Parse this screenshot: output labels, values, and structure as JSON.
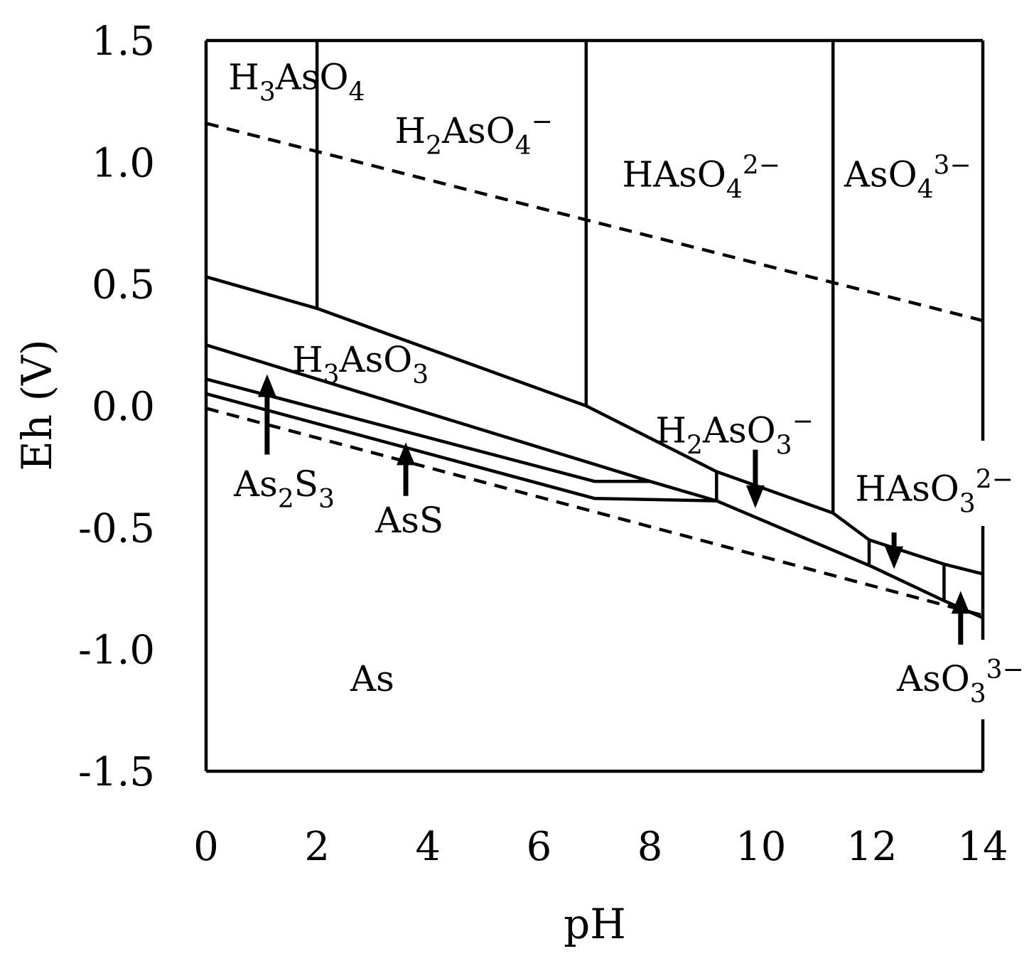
{
  "chart_data": {
    "type": "line",
    "xlabel": "pH",
    "ylabel": "Eh (V)",
    "xlim": [
      0,
      14
    ],
    "ylim": [
      -1.5,
      1.5
    ],
    "xticks": [
      "0",
      "2",
      "4",
      "6",
      "8",
      "10",
      "12",
      "14"
    ],
    "yticks": [
      "1.5",
      "1.0",
      "0.5",
      "0.0",
      "-0.5",
      "-1.0",
      "-1.5"
    ],
    "grid": false,
    "water_stability": [
      {
        "points": [
          [
            0,
            1.16
          ],
          [
            14,
            0.35
          ]
        ]
      },
      {
        "points": [
          [
            0,
            -0.01
          ],
          [
            14,
            -0.86
          ]
        ]
      }
    ],
    "boundaries": [
      {
        "points": [
          [
            0,
            0.53
          ],
          [
            2.0,
            0.4
          ],
          [
            6.85,
            0.0
          ],
          [
            9.2,
            -0.27
          ],
          [
            11.3,
            -0.44
          ],
          [
            11.95,
            -0.55
          ],
          [
            13.3,
            -0.65
          ],
          [
            14.0,
            -0.69
          ]
        ]
      },
      {
        "points": [
          [
            0,
            0.25
          ],
          [
            8.0,
            -0.31
          ],
          [
            9.2,
            -0.39
          ],
          [
            12.0,
            -0.66
          ],
          [
            13.3,
            -0.8
          ],
          [
            14.0,
            -0.87
          ]
        ]
      },
      {
        "points": [
          [
            0,
            0.11
          ],
          [
            7.0,
            -0.31
          ],
          [
            8.0,
            -0.31
          ]
        ]
      },
      {
        "points": [
          [
            0,
            0.05
          ],
          [
            7.0,
            -0.38
          ],
          [
            9.2,
            -0.39
          ]
        ]
      },
      {
        "points": [
          [
            2.0,
            1.5
          ],
          [
            2.0,
            0.4
          ]
        ]
      },
      {
        "points": [
          [
            6.85,
            1.5
          ],
          [
            6.85,
            0.0
          ]
        ]
      },
      {
        "points": [
          [
            11.3,
            1.5
          ],
          [
            11.3,
            -0.44
          ]
        ]
      },
      {
        "points": [
          [
            9.2,
            -0.27
          ],
          [
            9.2,
            -0.39
          ]
        ],
        "color": "#1e3a1e"
      },
      {
        "points": [
          [
            11.95,
            -0.55
          ],
          [
            11.95,
            -0.65
          ]
        ]
      },
      {
        "points": [
          [
            13.3,
            -0.65
          ],
          [
            13.3,
            -0.8
          ]
        ]
      }
    ],
    "arrows": [
      {
        "label": "As2S3",
        "from": [
          1.1,
          -0.2
        ],
        "to": [
          1.1,
          0.13
        ]
      },
      {
        "label": "AsS",
        "from": [
          3.6,
          -0.37
        ],
        "to": [
          3.6,
          -0.15
        ]
      },
      {
        "label": "H2AsO3-",
        "from": [
          9.9,
          -0.18
        ],
        "to": [
          9.9,
          -0.42
        ]
      },
      {
        "label": "HAsO3 2-",
        "from": [
          12.4,
          -0.52
        ],
        "to": [
          12.4,
          -0.67
        ]
      },
      {
        "label": "AsO3 3-",
        "from": [
          13.6,
          -0.98
        ],
        "to": [
          13.6,
          -0.76
        ]
      }
    ],
    "annotations": [
      {
        "id": "h3aso4",
        "base": "H",
        "sub1": "3",
        "mid": "AsO",
        "sub2": "4",
        "sup": "",
        "x": 0.4,
        "y": 1.3
      },
      {
        "id": "h2aso4",
        "base": "H",
        "sub1": "2",
        "mid": "AsO",
        "sub2": "4",
        "sup": "−",
        "x": 3.4,
        "y": 1.08
      },
      {
        "id": "haso4",
        "base": "HAsO",
        "sub1": "4",
        "mid": "",
        "sub2": "",
        "sup": "2−",
        "x": 7.5,
        "y": 0.9
      },
      {
        "id": "aso4",
        "base": "AsO",
        "sub1": "4",
        "mid": "",
        "sub2": "",
        "sup": "3−",
        "x": 11.5,
        "y": 0.9
      },
      {
        "id": "h3aso3",
        "base": "H",
        "sub1": "3",
        "mid": "AsO",
        "sub2": "3",
        "sup": "",
        "x": 1.55,
        "y": 0.14
      },
      {
        "id": "h2aso3",
        "base": "H",
        "sub1": "2",
        "mid": "AsO",
        "sub2": "3",
        "sup": "−",
        "x": 8.1,
        "y": -0.15
      },
      {
        "id": "haso3",
        "base": "HAsO",
        "sub1": "3",
        "mid": "",
        "sub2": "",
        "sup": "2−",
        "x": 11.7,
        "y": -0.39
      },
      {
        "id": "as2s3",
        "base": "As",
        "sub1": "2",
        "mid": "S",
        "sub2": "3",
        "sup": "",
        "x": 0.5,
        "y": -0.37
      },
      {
        "id": "ass",
        "base": "AsS",
        "sub1": "",
        "mid": "",
        "sub2": "",
        "sup": "",
        "x": 3.05,
        "y": -0.52
      },
      {
        "id": "as",
        "base": "As",
        "sub1": "",
        "mid": "",
        "sub2": "",
        "sup": "",
        "x": 2.6,
        "y": -1.17
      },
      {
        "id": "aso3",
        "base": "AsO",
        "sub1": "3",
        "mid": "",
        "sub2": "",
        "sup": "3−",
        "x": 12.45,
        "y": -1.17
      }
    ]
  }
}
